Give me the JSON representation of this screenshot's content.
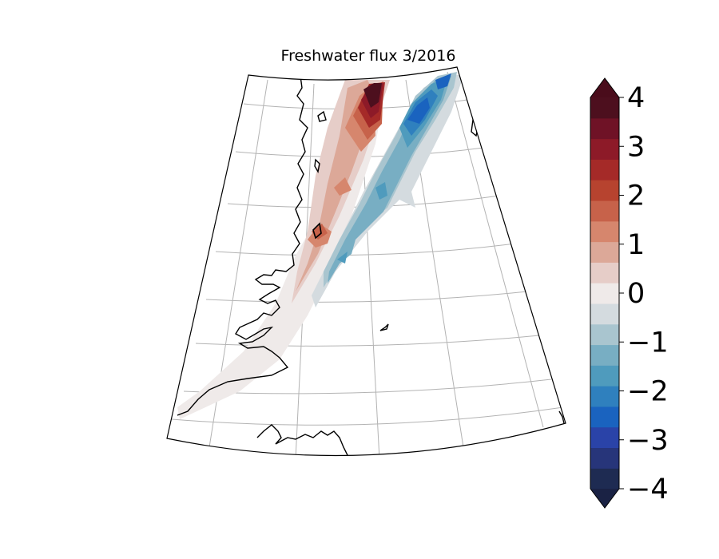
{
  "title": "Freshwater flux 3/2016",
  "colorbar": {
    "min": -4,
    "max": 4,
    "step": 0.5,
    "extend": "both",
    "tick_labels": [
      "4",
      "3",
      "2",
      "1",
      "0",
      "−1",
      "−2",
      "−3",
      "−4"
    ],
    "colors_low_to_high": [
      "#1e2b52",
      "#27357a",
      "#2a43a8",
      "#1a63bf",
      "#2f80be",
      "#4f9bbd",
      "#78aec3",
      "#a9c5cf",
      "#d4dbdf",
      "#efeae9",
      "#e6cdc8",
      "#dca898",
      "#d6866d",
      "#c7624a",
      "#b7432f",
      "#a52a28",
      "#8d1a28",
      "#6f1226",
      "#4d0f1e"
    ],
    "under_color": "#1a2244",
    "over_color": "#4a0c1b"
  },
  "map": {
    "projection": "conic",
    "gridlines": true,
    "coastline_color": "#000000",
    "field_sign_pattern": "positive band along the coast, negative band offshore"
  }
}
